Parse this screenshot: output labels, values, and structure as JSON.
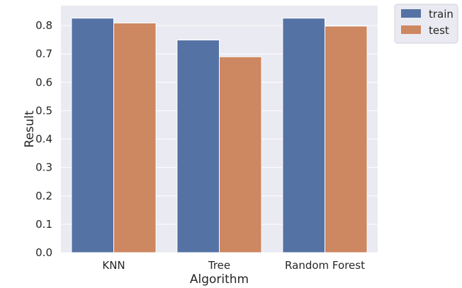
{
  "chart_data": {
    "type": "bar",
    "categories": [
      "KNN",
      "Tree",
      "Random Forest"
    ],
    "series": [
      {
        "name": "train",
        "values": [
          0.826,
          0.749,
          0.826
        ],
        "color": "#5572a4"
      },
      {
        "name": "test",
        "values": [
          0.809,
          0.69,
          0.798
        ],
        "color": "#cd8761"
      }
    ],
    "xlabel": "Algorithm",
    "ylabel": "Result",
    "ylim": [
      0,
      0.87
    ],
    "yticks": [
      "0.0",
      "0.1",
      "0.2",
      "0.3",
      "0.4",
      "0.5",
      "0.6",
      "0.7",
      "0.8"
    ],
    "grid": true,
    "legend_position": "outside-top-right",
    "background": "#eaeaf2",
    "grid_color": "#ffffff"
  }
}
